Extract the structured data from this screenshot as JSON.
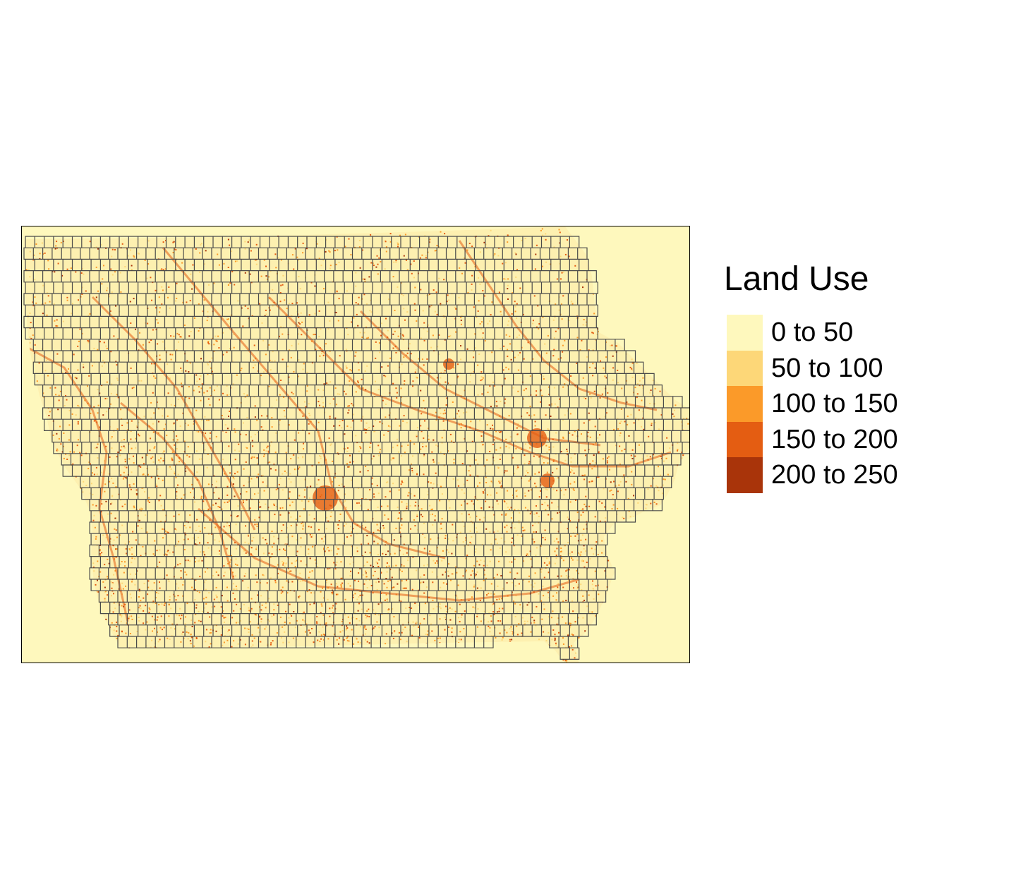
{
  "map": {
    "background_color": "#fef8bd",
    "outline_color": "#000000",
    "grid_line_color": "#4a4a4a",
    "speckle_colors": [
      "#fdd778",
      "#fb9a29",
      "#e45d12",
      "#a9340a"
    ],
    "region": "iowa-tile-grid"
  },
  "legend": {
    "title": "Land Use",
    "items": [
      {
        "label": "0 to 50",
        "color": "#fef8bd"
      },
      {
        "label": "50 to 100",
        "color": "#fdd778"
      },
      {
        "label": "100 to 150",
        "color": "#fb9a29"
      },
      {
        "label": "150 to 200",
        "color": "#e45d12"
      },
      {
        "label": "200 to 250",
        "color": "#a9340a"
      }
    ]
  }
}
